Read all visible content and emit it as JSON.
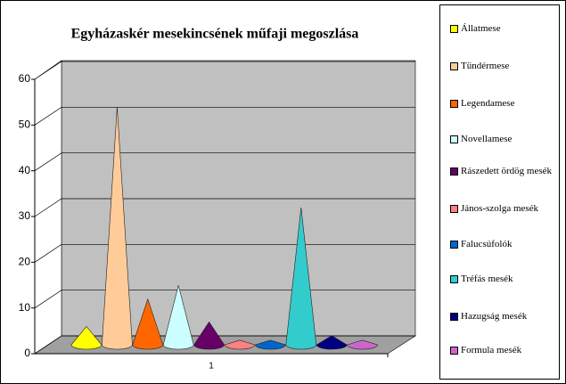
{
  "chart_data": {
    "type": "cone",
    "title": "Egyházaskér  mesekincsének műfaji megoszlása",
    "categories": [
      "1"
    ],
    "ylim": [
      0,
      60
    ],
    "yticks": [
      0,
      10,
      20,
      30,
      40,
      50,
      60
    ],
    "grid": true,
    "legend": "right",
    "series": [
      {
        "name": "Állatmese",
        "color": "#ffff00",
        "values": [
          4
        ]
      },
      {
        "name": "Tündérmese",
        "color": "#ffcc99",
        "values": [
          52
        ]
      },
      {
        "name": "Legendamese",
        "color": "#ff6600",
        "values": [
          10
        ]
      },
      {
        "name": "Novellamese",
        "color": "#ccffff",
        "values": [
          13
        ]
      },
      {
        "name": "Rászedett ördög mesék",
        "color": "#660066",
        "values": [
          5
        ]
      },
      {
        "name": "János-szolga mesék",
        "color": "#ff8080",
        "values": [
          1
        ]
      },
      {
        "name": "Falucsúfolók",
        "color": "#0066cc",
        "values": [
          1
        ]
      },
      {
        "name": "Tréfás mesék",
        "color": "#33cccc",
        "values": [
          30
        ]
      },
      {
        "name": "Hazugság mesék",
        "color": "#000080",
        "values": [
          2
        ]
      },
      {
        "name": "Formula mesék",
        "color": "#cc66cc",
        "values": [
          1
        ]
      }
    ]
  }
}
